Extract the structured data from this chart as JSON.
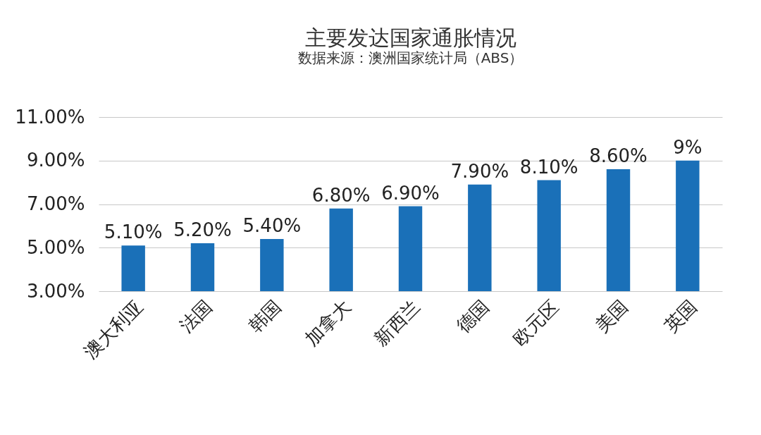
{
  "chart_data": {
    "type": "bar",
    "title": "主要发达国家通胀情况",
    "subtitle": "数据来源：澳洲国家统计局（ABS）",
    "categories": [
      "澳大利亚",
      "法国",
      "韩国",
      "加拿大",
      "新西兰",
      "德国",
      "欧元区",
      "美国",
      "英国"
    ],
    "values": [
      5.1,
      5.2,
      5.4,
      6.8,
      6.9,
      7.9,
      8.1,
      8.6,
      9
    ],
    "value_labels": [
      "5.10%",
      "5.20%",
      "5.40%",
      "6.80%",
      "6.90%",
      "7.90%",
      "8.10%",
      "8.60%",
      "9%"
    ],
    "color": "#1a70b8",
    "ylim": [
      3,
      11
    ],
    "yticks": [
      {
        "value": 3,
        "label": "3.00%"
      },
      {
        "value": 5,
        "label": "5.00%"
      },
      {
        "value": 7,
        "label": "7.00%"
      },
      {
        "value": 9,
        "label": "9.00%"
      },
      {
        "value": 11,
        "label": "11.00%"
      }
    ],
    "grid": "y"
  }
}
